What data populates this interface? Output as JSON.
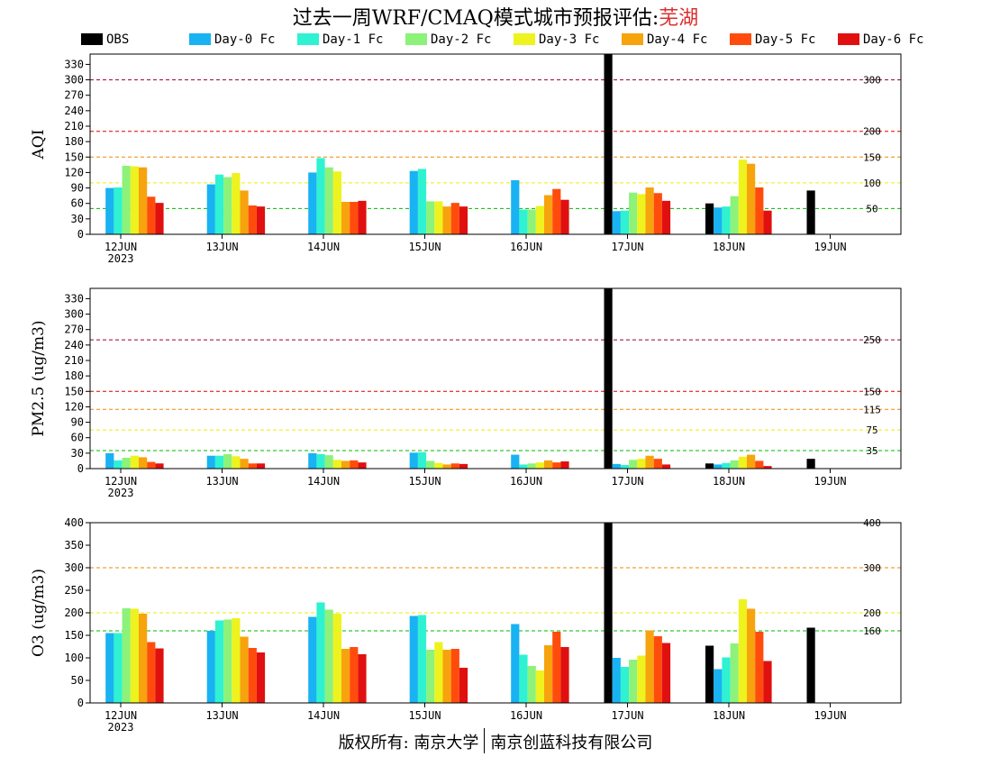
{
  "title": {
    "text": "过去一周WRF/CMAQ模式城市预报评估:",
    "city": "芜湖"
  },
  "colors": {
    "OBS": "#000000",
    "Day-0 Fc": "#19b2f2",
    "Day-1 Fc": "#2ef2d2",
    "Day-2 Fc": "#8cf27a",
    "Day-3 Fc": "#eef21e",
    "Day-4 Fc": "#f7a30d",
    "Day-5 Fc": "#ff4c0d",
    "Day-6 Fc": "#e01010"
  },
  "footer": {
    "left": "版权所有: 南京大学",
    "right": "南京创蓝科技有限公司"
  },
  "chart_data": [
    {
      "type": "bar",
      "ylabel": "AQI",
      "ylim": [
        0,
        350
      ],
      "yticks": [
        0,
        30,
        60,
        90,
        120,
        150,
        180,
        210,
        240,
        270,
        300,
        330
      ],
      "categories": [
        "12JUN",
        "13JUN",
        "14JUN",
        "15JUN",
        "16JUN",
        "17JUN",
        "18JUN",
        "19JUN"
      ],
      "year_label": "2023",
      "thresholds": [
        {
          "value": 50,
          "label": "50",
          "color": "#00bb00"
        },
        {
          "value": 100,
          "label": "100",
          "color": "#eeee00"
        },
        {
          "value": 150,
          "label": "150",
          "color": "#ee8800"
        },
        {
          "value": 200,
          "label": "200",
          "color": "#dd0000"
        },
        {
          "value": 300,
          "label": "300",
          "color": "#990033"
        }
      ],
      "series": [
        {
          "name": "OBS",
          "values": [
            null,
            null,
            null,
            null,
            null,
            350,
            60,
            85
          ]
        },
        {
          "name": "Day-0 Fc",
          "values": [
            90,
            97,
            120,
            123,
            105,
            45,
            52,
            null
          ]
        },
        {
          "name": "Day-1 Fc",
          "values": [
            91,
            116,
            148,
            127,
            48,
            46,
            54,
            null
          ]
        },
        {
          "name": "Day-2 Fc",
          "values": [
            133,
            111,
            130,
            64,
            48,
            81,
            74,
            null
          ]
        },
        {
          "name": "Day-3 Fc",
          "values": [
            132,
            119,
            122,
            64,
            55,
            78,
            145,
            null
          ]
        },
        {
          "name": "Day-4 Fc",
          "values": [
            130,
            85,
            63,
            54,
            76,
            91,
            137,
            null
          ]
        },
        {
          "name": "Day-5 Fc",
          "values": [
            73,
            56,
            63,
            61,
            88,
            80,
            91,
            null
          ]
        },
        {
          "name": "Day-6 Fc",
          "values": [
            61,
            54,
            65,
            54,
            67,
            65,
            46,
            null
          ]
        }
      ]
    },
    {
      "type": "bar",
      "ylabel": "PM2.5 (ug/m3)",
      "ylim": [
        0,
        350
      ],
      "yticks": [
        0,
        30,
        60,
        90,
        120,
        150,
        180,
        210,
        240,
        270,
        300,
        330
      ],
      "categories": [
        "12JUN",
        "13JUN",
        "14JUN",
        "15JUN",
        "16JUN",
        "17JUN",
        "18JUN",
        "19JUN"
      ],
      "year_label": "2023",
      "thresholds": [
        {
          "value": 35,
          "label": "35",
          "color": "#00bb00"
        },
        {
          "value": 75,
          "label": "75",
          "color": "#eeee00"
        },
        {
          "value": 115,
          "label": "115",
          "color": "#ee8800"
        },
        {
          "value": 150,
          "label": "150",
          "color": "#dd0000"
        },
        {
          "value": 250,
          "label": "250",
          "color": "#990033"
        }
      ],
      "series": [
        {
          "name": "OBS",
          "values": [
            null,
            null,
            null,
            null,
            null,
            350,
            10,
            19
          ]
        },
        {
          "name": "Day-0 Fc",
          "values": [
            30,
            25,
            30,
            31,
            27,
            9,
            8,
            null
          ]
        },
        {
          "name": "Day-1 Fc",
          "values": [
            16,
            25,
            28,
            32,
            8,
            7,
            11,
            null
          ]
        },
        {
          "name": "Day-2 Fc",
          "values": [
            21,
            28,
            26,
            15,
            10,
            17,
            16,
            null
          ]
        },
        {
          "name": "Day-3 Fc",
          "values": [
            25,
            24,
            17,
            11,
            12,
            19,
            23,
            null
          ]
        },
        {
          "name": "Day-4 Fc",
          "values": [
            22,
            19,
            15,
            8,
            16,
            25,
            27,
            null
          ]
        },
        {
          "name": "Day-5 Fc",
          "values": [
            13,
            10,
            16,
            10,
            12,
            19,
            15,
            null
          ]
        },
        {
          "name": "Day-6 Fc",
          "values": [
            10,
            10,
            12,
            9,
            14,
            8,
            5,
            null
          ]
        }
      ]
    },
    {
      "type": "bar",
      "ylabel": "O3 (ug/m3)",
      "ylim": [
        0,
        400
      ],
      "yticks": [
        0,
        50,
        100,
        150,
        200,
        250,
        300,
        350,
        400
      ],
      "categories": [
        "12JUN",
        "13JUN",
        "14JUN",
        "15JUN",
        "16JUN",
        "17JUN",
        "18JUN",
        "19JUN"
      ],
      "year_label": "2023",
      "thresholds": [
        {
          "value": 160,
          "label": "160",
          "color": "#00bb00"
        },
        {
          "value": 200,
          "label": "200",
          "color": "#eeee00"
        },
        {
          "value": 300,
          "label": "300",
          "color": "#ee8800"
        },
        {
          "value": 400,
          "label": "400",
          "color": "#dd0000"
        }
      ],
      "series": [
        {
          "name": "OBS",
          "values": [
            null,
            null,
            null,
            null,
            null,
            400,
            127,
            167
          ]
        },
        {
          "name": "Day-0 Fc",
          "values": [
            155,
            160,
            191,
            193,
            175,
            100,
            75,
            null
          ]
        },
        {
          "name": "Day-1 Fc",
          "values": [
            155,
            183,
            223,
            195,
            107,
            80,
            101,
            null
          ]
        },
        {
          "name": "Day-2 Fc",
          "values": [
            210,
            185,
            207,
            118,
            82,
            96,
            132,
            null
          ]
        },
        {
          "name": "Day-3 Fc",
          "values": [
            209,
            188,
            198,
            135,
            72,
            105,
            230,
            null
          ]
        },
        {
          "name": "Day-4 Fc",
          "values": [
            198,
            147,
            120,
            118,
            128,
            161,
            209,
            null
          ]
        },
        {
          "name": "Day-5 Fc",
          "values": [
            135,
            122,
            124,
            120,
            158,
            148,
            158,
            null
          ]
        },
        {
          "name": "Day-6 Fc",
          "values": [
            121,
            112,
            108,
            78,
            124,
            133,
            93,
            null
          ]
        }
      ]
    }
  ]
}
